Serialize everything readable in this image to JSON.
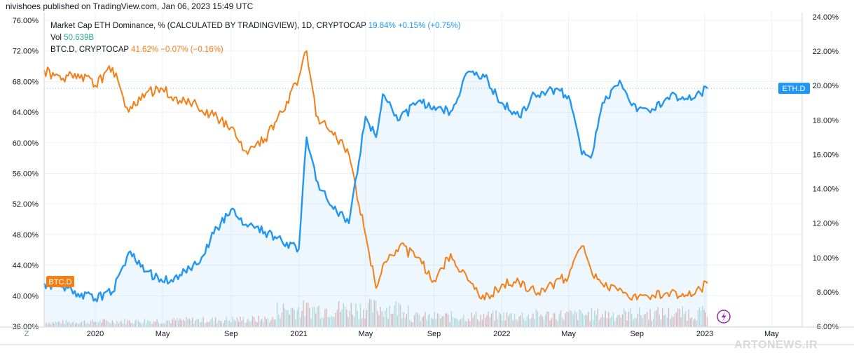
{
  "header": {
    "publisher": "nivishoes published on TradingView.com, Jan 06, 2023 15:49 UTC"
  },
  "watermark": "ARTONEWS.IR",
  "legend": {
    "eth": {
      "name": "Market Cap ETH Dominance, % (CALCULATED BY TRADINGVIEW), 1D, CRYPTOCAP",
      "last": "19.84%",
      "change": "+0.15% (+0.75%)"
    },
    "vol": {
      "name": "Vol",
      "value": "50.639B"
    },
    "btc": {
      "name": "BTC.D, CRYPTOCAP",
      "last": "41.62%",
      "change": "−0.07% (−0.16%)"
    }
  },
  "badges": {
    "eth": "ETH.D",
    "btc": "BTC.D"
  },
  "axis_corner": "Z",
  "icons": {
    "replay": "lightning-icon"
  },
  "colors": {
    "eth": "#2196f3",
    "btc": "#f57f17",
    "vol_up": "#e0a5a5",
    "vol_down": "#a5d6cf",
    "grid": "#eef0f3"
  },
  "chart_data": {
    "type": "line",
    "x_ticks": [
      "2020",
      "May",
      "Sep",
      "2021",
      "May",
      "Sep",
      "2022",
      "May",
      "Sep",
      "2023",
      "May"
    ],
    "left_axis": {
      "ticks": [
        "76.00%",
        "72.00%",
        "68.00%",
        "64.00%",
        "60.00%",
        "56.00%",
        "52.00%",
        "48.00%",
        "44.00%",
        "40.00%",
        "36.00%"
      ],
      "range": [
        36,
        76
      ]
    },
    "right_axis": {
      "ticks": [
        "24.00%",
        "22.00%",
        "20.00%",
        "18.00%",
        "16.00%",
        "14.00%",
        "12.00%",
        "10.00%",
        "8.00%",
        "6.00%"
      ],
      "range": [
        6,
        24
      ]
    },
    "series": [
      {
        "name": "BTC.D, CRYPTOCAP",
        "axis": "left",
        "x": [
          "2019-10-01",
          "2019-11-01",
          "2019-12-01",
          "2020-01-01",
          "2020-02-01",
          "2020-03-01",
          "2020-04-01",
          "2020-05-01",
          "2020-06-01",
          "2020-07-01",
          "2020-08-01",
          "2020-09-01",
          "2020-10-01",
          "2020-11-01",
          "2020-12-01",
          "2021-01-01",
          "2021-01-15",
          "2021-02-01",
          "2021-03-01",
          "2021-04-01",
          "2021-05-01",
          "2021-05-20",
          "2021-06-01",
          "2021-07-01",
          "2021-08-01",
          "2021-09-01",
          "2021-10-01",
          "2021-11-01",
          "2021-12-01",
          "2022-01-01",
          "2022-02-01",
          "2022-03-01",
          "2022-04-01",
          "2022-05-01",
          "2022-05-25",
          "2022-06-10",
          "2022-07-01",
          "2022-08-01",
          "2022-09-01",
          "2022-10-01",
          "2022-11-01",
          "2022-12-01",
          "2023-01-06"
        ],
        "values": [
          69.5,
          68.2,
          69.0,
          67.5,
          69.8,
          64.0,
          66.5,
          67.0,
          65.5,
          65.0,
          63.5,
          62.0,
          58.5,
          60.5,
          64.0,
          68.5,
          72.0,
          63.5,
          61.5,
          58.5,
          48.0,
          41.0,
          44.0,
          46.5,
          45.0,
          42.0,
          45.5,
          42.0,
          39.5,
          41.5,
          41.8,
          40.5,
          41.5,
          42.5,
          46.5,
          43.5,
          41.5,
          41.0,
          39.5,
          40.0,
          40.5,
          40.0,
          41.62
        ],
        "last": "41.62%"
      },
      {
        "name": "Market Cap ETH Dominance, % (CALCULATED BY TRADINGVIEW), 1D, CRYPTOCAP",
        "axis": "right",
        "x": [
          "2019-10-01",
          "2019-11-01",
          "2019-12-01",
          "2020-01-01",
          "2020-02-01",
          "2020-03-01",
          "2020-04-01",
          "2020-05-01",
          "2020-06-01",
          "2020-07-01",
          "2020-08-01",
          "2020-09-01",
          "2020-10-01",
          "2020-11-01",
          "2020-12-01",
          "2021-01-01",
          "2021-01-15",
          "2021-02-01",
          "2021-03-01",
          "2021-04-01",
          "2021-05-01",
          "2021-05-20",
          "2021-06-01",
          "2021-07-01",
          "2021-08-01",
          "2021-09-01",
          "2021-10-01",
          "2021-11-01",
          "2021-12-01",
          "2022-01-01",
          "2022-02-01",
          "2022-03-01",
          "2022-04-01",
          "2022-05-01",
          "2022-05-25",
          "2022-06-10",
          "2022-07-01",
          "2022-08-01",
          "2022-09-01",
          "2022-10-01",
          "2022-11-01",
          "2022-12-01",
          "2023-01-06"
        ],
        "values": [
          8.5,
          8.3,
          7.9,
          7.6,
          8.0,
          10.3,
          9.2,
          8.6,
          9.0,
          9.6,
          11.4,
          12.8,
          11.8,
          11.5,
          11.0,
          10.5,
          17.0,
          14.5,
          13.0,
          12.0,
          18.2,
          17.0,
          19.5,
          18.0,
          19.0,
          18.8,
          18.5,
          20.8,
          20.5,
          19.0,
          18.2,
          19.5,
          19.8,
          19.4,
          16.0,
          15.8,
          19.0,
          20.3,
          18.5,
          18.6,
          19.5,
          19.2,
          19.84
        ],
        "last": "19.84%"
      },
      {
        "name": "Vol",
        "axis": "volume",
        "last": "50.639B"
      }
    ],
    "grid": true,
    "legend_position": "top-left"
  }
}
